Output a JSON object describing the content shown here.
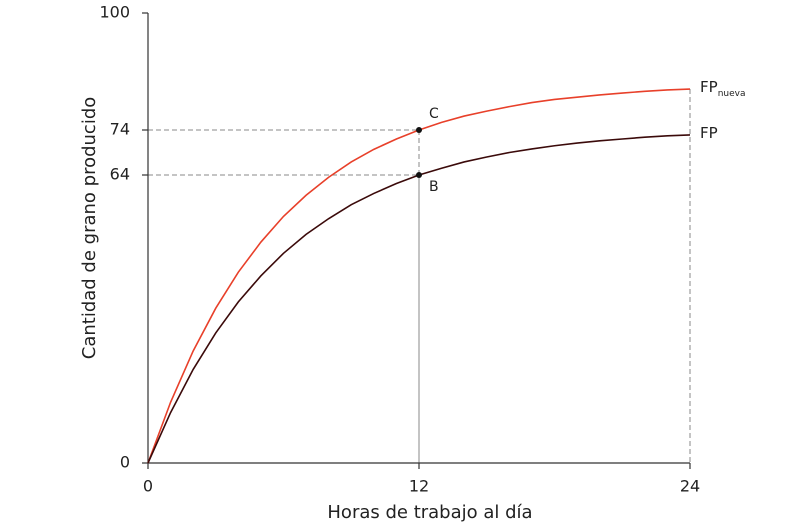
{
  "chart_data": {
    "type": "line",
    "x_label": "Horas de trabajo al día",
    "y_label": "Cantidad de grano producido",
    "x": [
      0,
      1,
      2,
      3,
      4,
      5,
      6,
      7,
      8,
      9,
      10,
      11,
      12,
      13,
      14,
      15,
      16,
      17,
      18,
      19,
      20,
      21,
      22,
      23,
      24
    ],
    "series": [
      {
        "name": "FP",
        "subscript": "nueva",
        "color": "#e8402a",
        "values": [
          0,
          13.5,
          24.9,
          34.4,
          42.4,
          49.1,
          54.8,
          59.5,
          63.5,
          66.9,
          69.7,
          72.0,
          74.0,
          75.7,
          77.1,
          78.2,
          79.2,
          80.1,
          80.8,
          81.3,
          81.8,
          82.2,
          82.6,
          82.9,
          83.1
        ]
      },
      {
        "name": "FP",
        "color": "#3b0a0a",
        "values": [
          0,
          11.2,
          20.8,
          28.9,
          35.8,
          41.6,
          46.6,
          50.8,
          54.3,
          57.4,
          59.9,
          62.1,
          64.0,
          65.5,
          66.9,
          68.0,
          69.0,
          69.8,
          70.5,
          71.1,
          71.6,
          72.0,
          72.4,
          72.7,
          72.9
        ]
      }
    ],
    "points": [
      {
        "label": "C",
        "x": 12,
        "y": 74
      },
      {
        "label": "B",
        "x": 12,
        "y": 64
      }
    ],
    "xlim": [
      0,
      24
    ],
    "ylim": [
      0,
      100
    ],
    "xticks": [
      0,
      12,
      24
    ],
    "yticks": [
      0,
      64,
      74,
      100
    ]
  }
}
